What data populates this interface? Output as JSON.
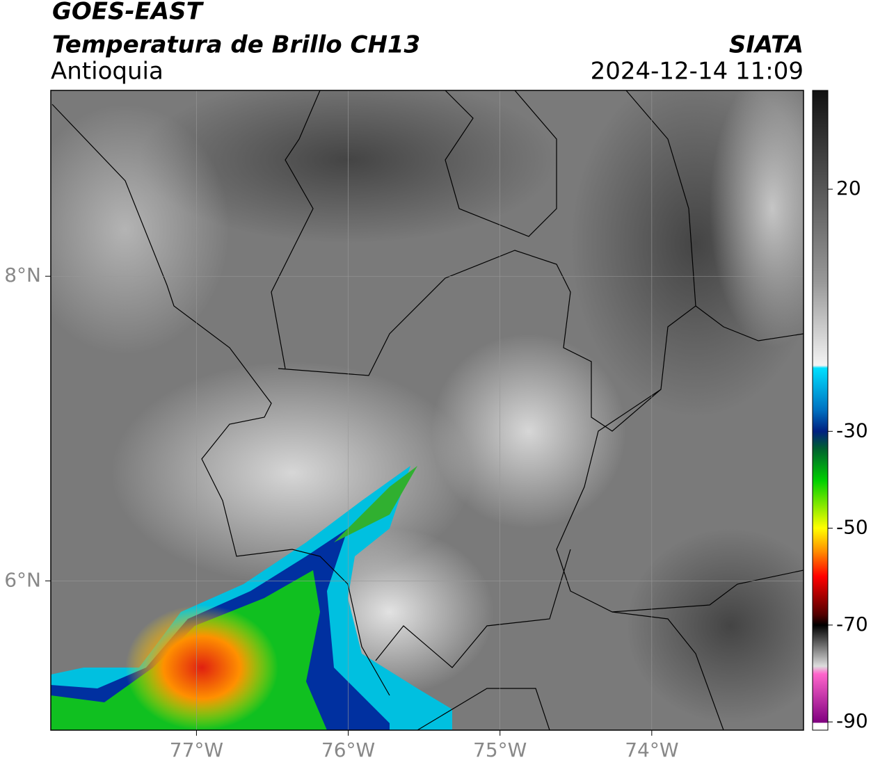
{
  "header": {
    "title": "GOES-EAST",
    "subtitle": "Temperatura de Brillo CH13",
    "region": "Antioquia",
    "source": "SIATA",
    "datetime": "2024-12-14 11:09"
  },
  "map": {
    "xlim": [
      -77.96,
      -73.0
    ],
    "ylim": [
      5.02,
      9.22
    ],
    "xticks": [
      {
        "value": -77,
        "label": "77°W"
      },
      {
        "value": -76,
        "label": "76°W"
      },
      {
        "value": -75,
        "label": "75°W"
      },
      {
        "value": -74,
        "label": "74°W"
      }
    ],
    "yticks": [
      {
        "value": 8,
        "label": "8°N"
      },
      {
        "value": 6,
        "label": "6°N"
      }
    ],
    "grid": true
  },
  "colorbar": {
    "lim": [
      -91.7,
      40.4
    ],
    "ticks": [
      20,
      -30,
      -50,
      -70,
      -90
    ]
  }
}
